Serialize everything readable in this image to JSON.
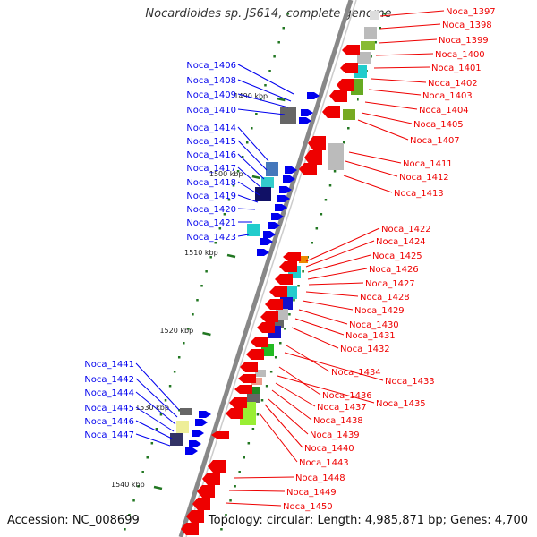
{
  "title": "Nocardioides sp. JS614, complete genome",
  "accession_label": "Accession: NC_008699",
  "summary_label": "Topology: circular; Length: 4,985,871 bp; Genes: 4,700",
  "colors": {
    "forward": "#0000ee",
    "reverse": "#ee0000",
    "backbone": "#888888",
    "tick": "#227722"
  },
  "kbp_ticks": [
    "1490 kbp",
    "1500 kbp",
    "1510 kbp",
    "1520 kbp",
    "1530 kbp",
    "1540 kbp"
  ],
  "labels_left": [
    "Noca_1406",
    "Noca_1408",
    "Noca_1409",
    "Noca_1410",
    "Noca_1414",
    "Noca_1415",
    "Noca_1416",
    "Noca_1417",
    "Noca_1418",
    "Noca_1419",
    "Noca_1420",
    "Noca_1421",
    "Noca_1423",
    "Noca_1441",
    "Noca_1442",
    "Noca_1444",
    "Noca_1445",
    "Noca_1446",
    "Noca_1447"
  ],
  "labels_right": [
    "Noca_1397",
    "Noca_1398",
    "Noca_1399",
    "Noca_1400",
    "Noca_1401",
    "Noca_1402",
    "Noca_1403",
    "Noca_1404",
    "Noca_1405",
    "Noca_1407",
    "Noca_1411",
    "Noca_1412",
    "Noca_1413",
    "Noca_1422",
    "Noca_1424",
    "Noca_1425",
    "Noca_1426",
    "Noca_1427",
    "Noca_1428",
    "Noca_1429",
    "Noca_1430",
    "Noca_1431",
    "Noca_1432",
    "Noca_1434",
    "Noca_1433",
    "Noca_1436",
    "Noca_1435",
    "Noca_1437",
    "Noca_1438",
    "Noca_1439",
    "Noca_1440",
    "Noca_1443",
    "Noca_1448",
    "Noca_1449",
    "Noca_1450"
  ]
}
